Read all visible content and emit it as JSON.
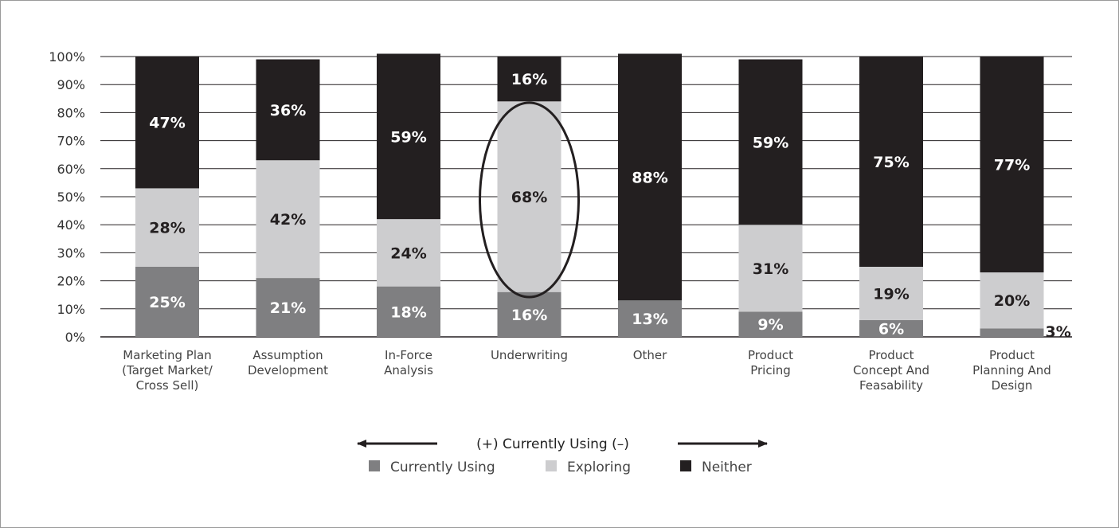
{
  "chart_data": {
    "type": "bar",
    "stacked": true,
    "title": "",
    "xlabel": "",
    "ylabel": "",
    "ylim": [
      0,
      100
    ],
    "yticks": [
      "0%",
      "10%",
      "20%",
      "30%",
      "40%",
      "50%",
      "60%",
      "70%",
      "80%",
      "90%",
      "100%"
    ],
    "grid": true,
    "categories": [
      [
        "Marketing Plan",
        "(Target Market/",
        "Cross Sell)"
      ],
      [
        "Assumption",
        "Development"
      ],
      [
        "In-Force",
        "Analysis"
      ],
      [
        "Underwriting"
      ],
      [
        "Other"
      ],
      [
        "Product",
        "Pricing"
      ],
      [
        "Product",
        "Concept And",
        "Feasability"
      ],
      [
        "Product",
        "Planning And",
        "Design"
      ]
    ],
    "series": [
      {
        "name": "Currently Using",
        "color": "#7f7f81",
        "text_color": "#ffffff",
        "values": [
          25,
          21,
          18,
          16,
          13,
          9,
          6,
          3
        ],
        "labels": [
          "25%",
          "21%",
          "18%",
          "16%",
          "13%",
          "9%",
          "6%",
          "3%"
        ]
      },
      {
        "name": "Exploring",
        "color": "#cdcdcf",
        "text_color": "#231f20",
        "values": [
          28,
          42,
          24,
          68,
          0,
          31,
          19,
          20
        ],
        "labels": [
          "28%",
          "42%",
          "24%",
          "68%",
          "",
          "31%",
          "19%",
          "20%"
        ]
      },
      {
        "name": "Neither",
        "color": "#231f20",
        "text_color": "#ffffff",
        "values": [
          47,
          36,
          59,
          16,
          88,
          59,
          75,
          77
        ],
        "labels": [
          "47%",
          "36%",
          "59%",
          "16%",
          "88%",
          "59%",
          "75%",
          "77%"
        ]
      }
    ],
    "highlight_category_index": 3,
    "axis_note": "(+) Currently Using (–)",
    "legend_position": "bottom"
  }
}
